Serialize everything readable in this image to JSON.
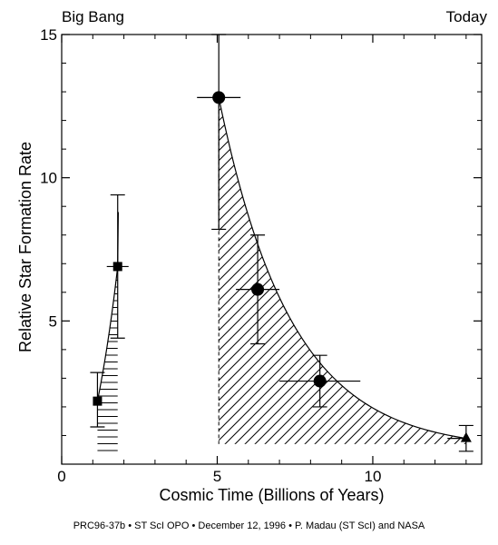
{
  "chart_data": {
    "type": "scatter",
    "title": "",
    "xlabel": "Cosmic Time (Billions of Years)",
    "ylabel": "Relative Star Formation Rate",
    "xlim": [
      0,
      13.5
    ],
    "ylim": [
      0,
      15
    ],
    "x_ticks": [
      0,
      5,
      10
    ],
    "x_tick_labels": [
      "0",
      "5",
      "10"
    ],
    "y_ticks": [
      5,
      10,
      15
    ],
    "y_tick_labels": [
      "5",
      "10",
      "15"
    ],
    "corner_labels": {
      "left": "Big Bang",
      "right": "Today"
    },
    "grid": false,
    "series": [
      {
        "marker": "square",
        "points": [
          {
            "x": 1.15,
            "y": 2.2,
            "x_err": [
              0,
              0
            ],
            "y_err": [
              0.9,
              1.0
            ]
          },
          {
            "x": 1.8,
            "y": 6.9,
            "x_err": [
              0.35,
              0.35
            ],
            "y_err": [
              2.5,
              2.5
            ]
          }
        ],
        "shading": "horizontal hatching"
      },
      {
        "marker": "circle",
        "points": [
          {
            "x": 5.05,
            "y": 12.8,
            "x_err": [
              0.7,
              0.7
            ],
            "y_err": [
              4.6,
              2.2
            ]
          },
          {
            "x": 6.3,
            "y": 6.1,
            "x_err": [
              0.7,
              0.7
            ],
            "y_err": [
              1.9,
              1.9
            ]
          },
          {
            "x": 8.3,
            "y": 2.9,
            "x_err": [
              1.3,
              1.3
            ],
            "y_err": [
              0.9,
              0.9
            ]
          }
        ],
        "shading": "diagonal hatching"
      },
      {
        "marker": "triangle",
        "points": [
          {
            "x": 13.0,
            "y": 0.9,
            "x_err": [
              0.6,
              0
            ],
            "y_err": [
              0.45,
              0.45
            ]
          }
        ]
      }
    ]
  },
  "credit": "PRC96-37b • ST ScI OPO • December 12, 1996 • P. Madau (ST ScI) and NASA"
}
